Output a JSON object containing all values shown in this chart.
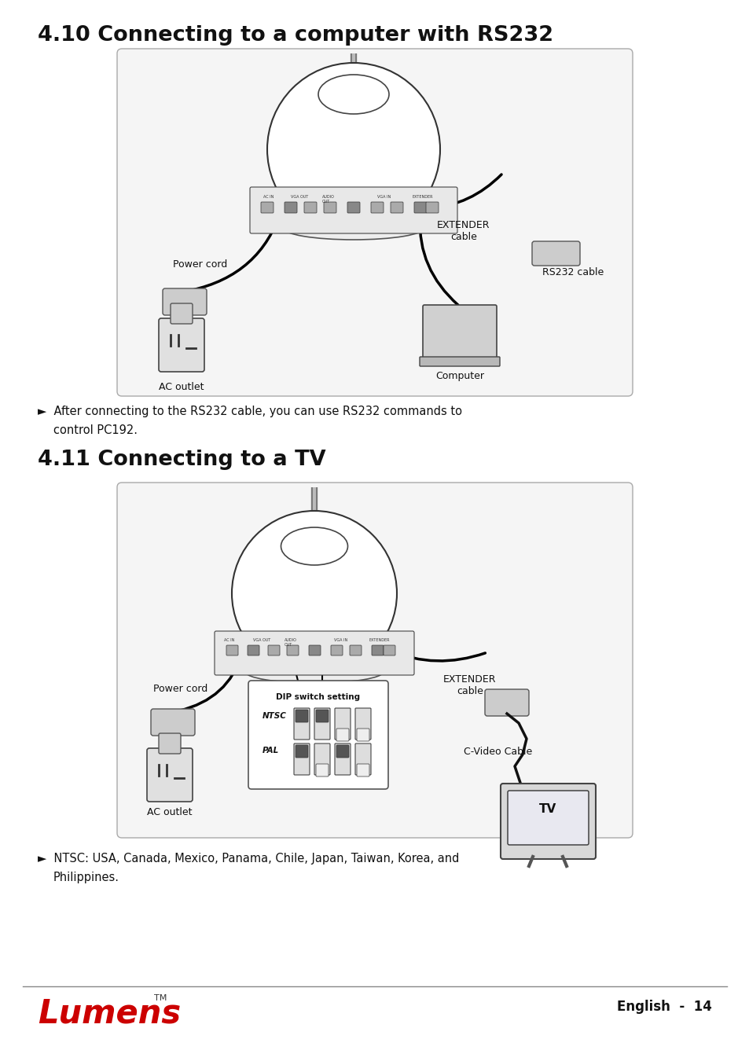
{
  "title1": "4.10 Connecting to a computer with RS232",
  "title2": "4.11 Connecting to a TV",
  "bullet1_line1": "►  After connecting to the RS232 cable, you can use RS232 commands to",
  "bullet1_line2": "    control PC192.",
  "bullet2_line1": "►  NTSC: USA, Canada, Mexico, Panama, Chile, Japan, Taiwan, Korea, and",
  "bullet2_line2": "    Philippines.",
  "footer_right": "English  -  14",
  "bg_color": "#ffffff",
  "box_bg": "#f7f7f7",
  "box_border": "#999999",
  "title_color": "#111111",
  "text_color": "#111111",
  "lumens_color": "#cc0000",
  "diagram_bg": "#ffffff",
  "diagram_line": "#222222"
}
